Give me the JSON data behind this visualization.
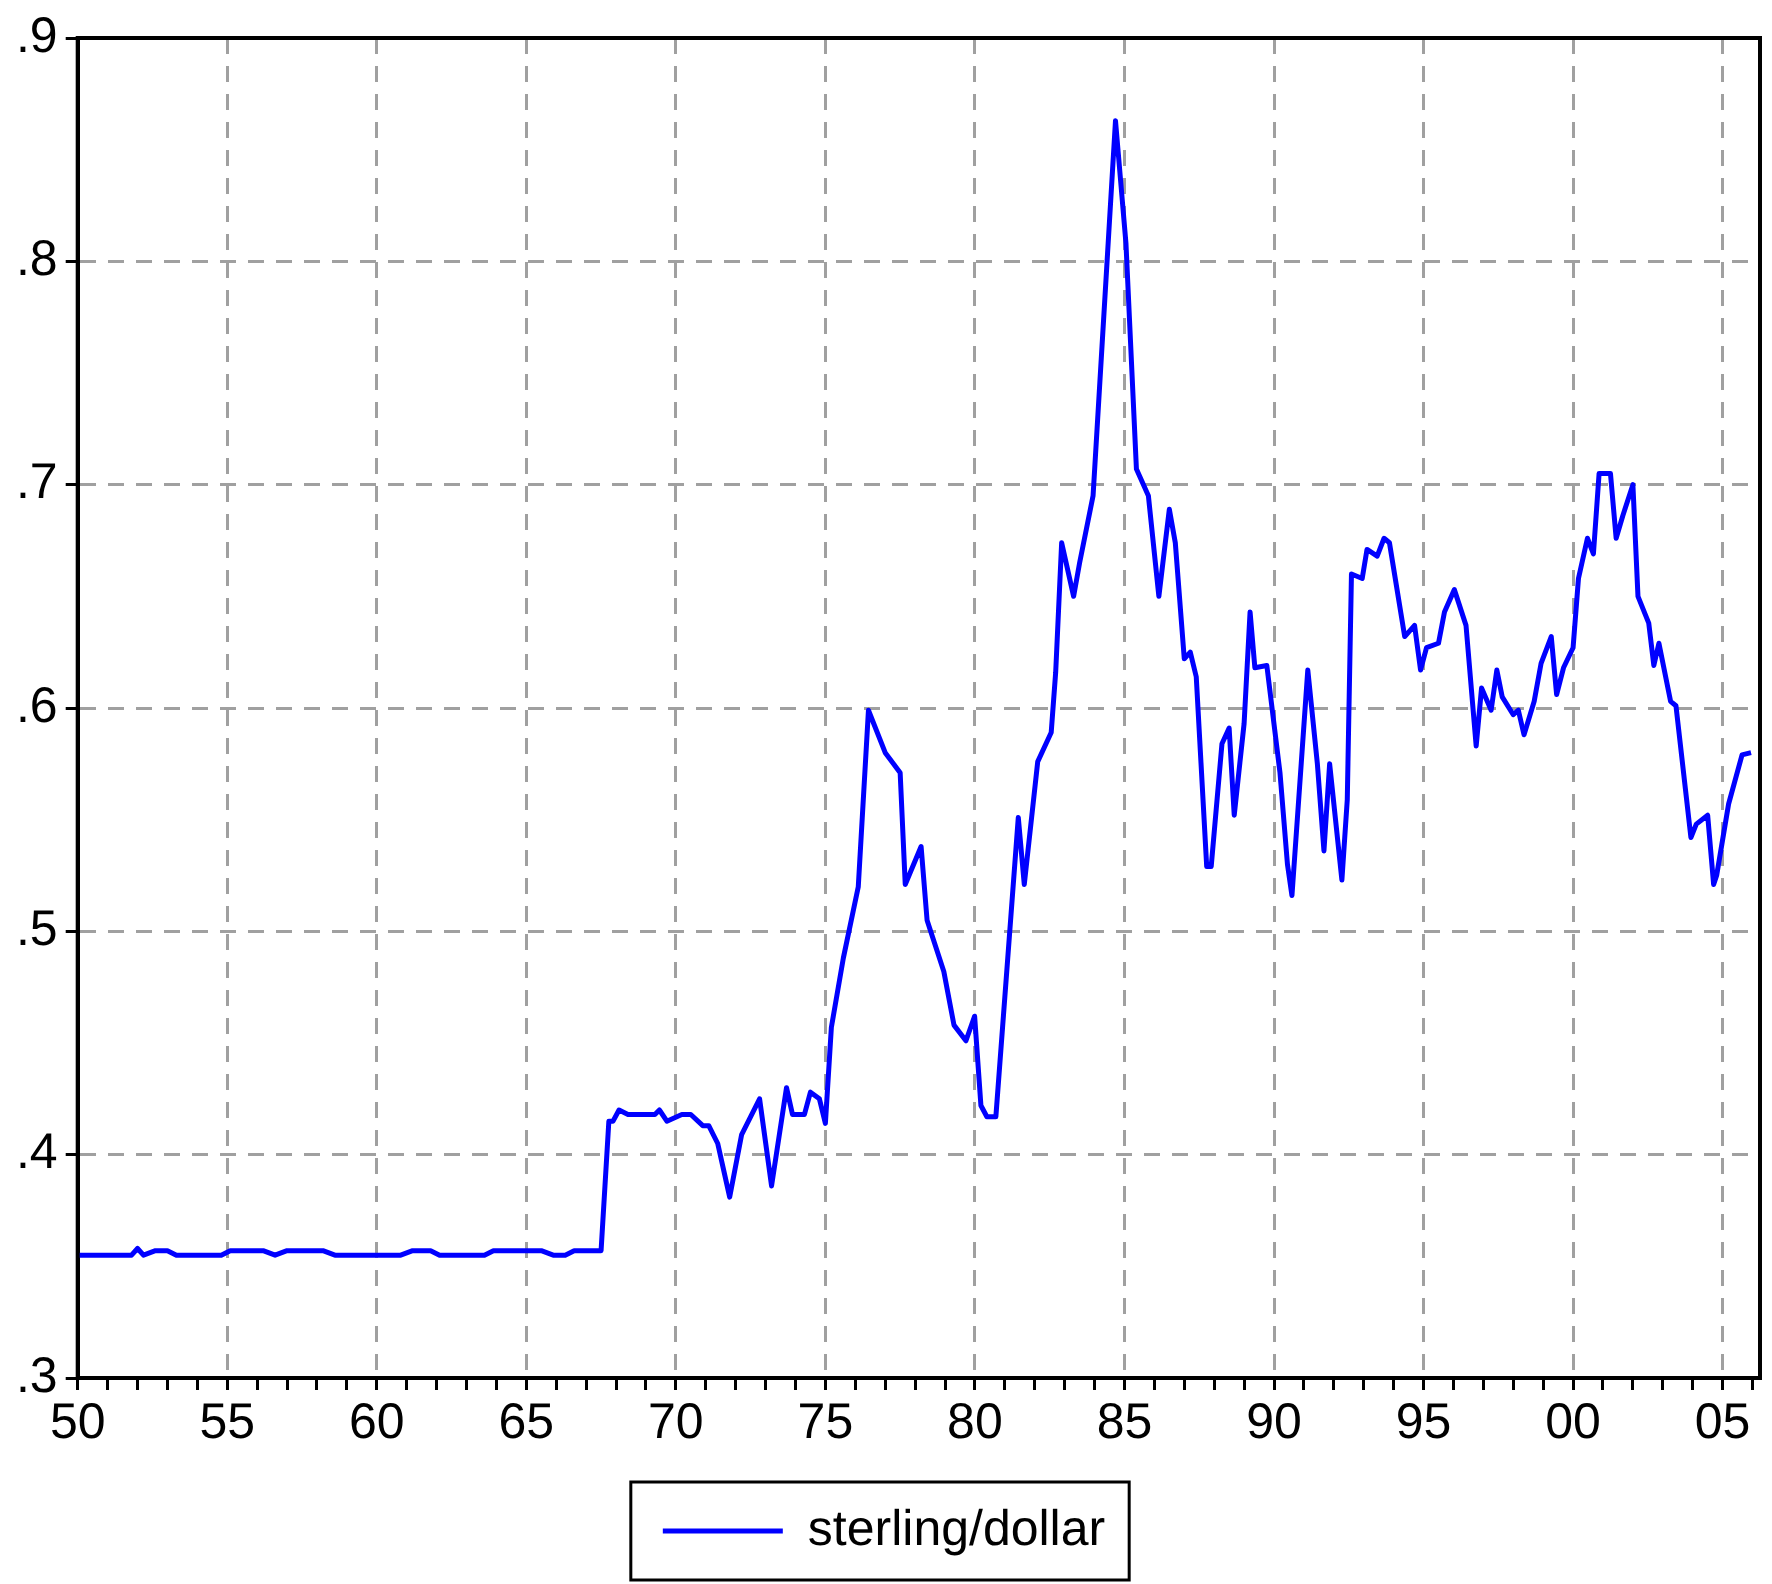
{
  "chart_data": {
    "type": "line",
    "legend": "bottom",
    "grid": true,
    "marker": "none",
    "line_style": "solid",
    "xlim": [
      1950,
      2006.25
    ],
    "xticks": [
      {
        "value": 1950,
        "label": "50"
      },
      {
        "value": 1951,
        "label": null
      },
      {
        "value": 1952,
        "label": null
      },
      {
        "value": 1953,
        "label": null
      },
      {
        "value": 1954,
        "label": null
      },
      {
        "value": 1955,
        "label": "55"
      },
      {
        "value": 1956,
        "label": null
      },
      {
        "value": 1957,
        "label": null
      },
      {
        "value": 1958,
        "label": null
      },
      {
        "value": 1959,
        "label": null
      },
      {
        "value": 1960,
        "label": "60"
      },
      {
        "value": 1961,
        "label": null
      },
      {
        "value": 1962,
        "label": null
      },
      {
        "value": 1963,
        "label": null
      },
      {
        "value": 1964,
        "label": null
      },
      {
        "value": 1965,
        "label": "65"
      },
      {
        "value": 1966,
        "label": null
      },
      {
        "value": 1967,
        "label": null
      },
      {
        "value": 1968,
        "label": null
      },
      {
        "value": 1969,
        "label": null
      },
      {
        "value": 1970,
        "label": "70"
      },
      {
        "value": 1971,
        "label": null
      },
      {
        "value": 1972,
        "label": null
      },
      {
        "value": 1973,
        "label": null
      },
      {
        "value": 1974,
        "label": null
      },
      {
        "value": 1975,
        "label": "75"
      },
      {
        "value": 1976,
        "label": null
      },
      {
        "value": 1977,
        "label": null
      },
      {
        "value": 1978,
        "label": null
      },
      {
        "value": 1979,
        "label": null
      },
      {
        "value": 1980,
        "label": "80"
      },
      {
        "value": 1981,
        "label": null
      },
      {
        "value": 1982,
        "label": null
      },
      {
        "value": 1983,
        "label": null
      },
      {
        "value": 1984,
        "label": null
      },
      {
        "value": 1985,
        "label": "85"
      },
      {
        "value": 1986,
        "label": null
      },
      {
        "value": 1987,
        "label": null
      },
      {
        "value": 1988,
        "label": null
      },
      {
        "value": 1989,
        "label": null
      },
      {
        "value": 1990,
        "label": "90"
      },
      {
        "value": 1991,
        "label": null
      },
      {
        "value": 1992,
        "label": null
      },
      {
        "value": 1993,
        "label": null
      },
      {
        "value": 1994,
        "label": null
      },
      {
        "value": 1995,
        "label": "95"
      },
      {
        "value": 1996,
        "label": null
      },
      {
        "value": 1997,
        "label": null
      },
      {
        "value": 1998,
        "label": null
      },
      {
        "value": 1999,
        "label": null
      },
      {
        "value": 2000,
        "label": "00"
      },
      {
        "value": 2001,
        "label": null
      },
      {
        "value": 2002,
        "label": null
      },
      {
        "value": 2003,
        "label": null
      },
      {
        "value": 2004,
        "label": null
      },
      {
        "value": 2005,
        "label": "05"
      },
      {
        "value": 2006,
        "label": null
      }
    ],
    "ylim": [
      0.3,
      0.9
    ],
    "yticks": [
      {
        "value": 0.3,
        "label": ".3"
      },
      {
        "value": 0.4,
        "label": ".4"
      },
      {
        "value": 0.5,
        "label": ".5"
      },
      {
        "value": 0.6,
        "label": ".6"
      },
      {
        "value": 0.7,
        "label": ".7"
      },
      {
        "value": 0.8,
        "label": ".8"
      },
      {
        "value": 0.9,
        "label": ".9"
      }
    ],
    "series": [
      {
        "name": "sterling/dollar",
        "color": "#0000ff",
        "x": [
          1950,
          1951.8,
          1952.0,
          1952.2,
          1952.6,
          1953.0,
          1953.3,
          1954.8,
          1955.1,
          1956.2,
          1956.6,
          1957.0,
          1958.2,
          1958.6,
          1960.8,
          1961.2,
          1961.8,
          1962.1,
          1963.6,
          1963.9,
          1965.5,
          1965.9,
          1966.3,
          1966.6,
          1967.5,
          1967.76,
          1967.9,
          1968.1,
          1968.4,
          1969.3,
          1969.45,
          1969.7,
          1970.2,
          1970.5,
          1970.9,
          1971.1,
          1971.4,
          1971.8,
          1972.2,
          1972.8,
          1973.2,
          1973.7,
          1973.9,
          1974.3,
          1974.5,
          1974.8,
          1975.0,
          1975.2,
          1975.6,
          1976.1,
          1976.44,
          1977.0,
          1977.5,
          1977.67,
          1978.2,
          1978.4,
          1978.96,
          1979.3,
          1979.7,
          1979.99,
          1980.2,
          1980.4,
          1980.7,
          1981.45,
          1981.65,
          1982.1,
          1982.55,
          1982.7,
          1982.9,
          1983.3,
          1983.5,
          1983.95,
          1984.7,
          1985.05,
          1985.4,
          1985.8,
          1986.15,
          1986.5,
          1986.7,
          1987.0,
          1987.2,
          1987.4,
          1987.75,
          1987.9,
          1988.26,
          1988.5,
          1988.67,
          1989.0,
          1989.2,
          1989.36,
          1989.76,
          1990.2,
          1990.45,
          1990.6,
          1991.13,
          1991.45,
          1991.67,
          1991.86,
          1992.27,
          1992.45,
          1992.59,
          1992.95,
          1993.11,
          1993.45,
          1993.68,
          1993.86,
          1994.37,
          1994.7,
          1994.9,
          1995.1,
          1995.5,
          1995.7,
          1996.03,
          1996.42,
          1996.76,
          1996.94,
          1997.26,
          1997.45,
          1997.63,
          1998.0,
          1998.17,
          1998.36,
          1998.7,
          1998.93,
          1999.27,
          1999.45,
          1999.68,
          2000.0,
          2000.18,
          2000.48,
          2000.68,
          2000.87,
          2001.25,
          2001.44,
          2001.66,
          2002.0,
          2002.17,
          2002.53,
          2002.7,
          2002.87,
          2003.26,
          2003.44,
          2003.94,
          2004.12,
          2004.5,
          2004.7,
          2004.8,
          2005.2,
          2005.65,
          2005.95
        ],
        "values": [
          0.355,
          0.355,
          0.358,
          0.355,
          0.357,
          0.357,
          0.355,
          0.355,
          0.357,
          0.357,
          0.355,
          0.357,
          0.357,
          0.355,
          0.355,
          0.357,
          0.357,
          0.355,
          0.355,
          0.357,
          0.357,
          0.355,
          0.355,
          0.357,
          0.357,
          0.415,
          0.415,
          0.42,
          0.418,
          0.418,
          0.42,
          0.415,
          0.418,
          0.418,
          0.413,
          0.413,
          0.405,
          0.381,
          0.409,
          0.425,
          0.386,
          0.43,
          0.418,
          0.418,
          0.428,
          0.425,
          0.414,
          0.457,
          0.488,
          0.52,
          0.599,
          0.58,
          0.571,
          0.521,
          0.538,
          0.505,
          0.482,
          0.458,
          0.451,
          0.462,
          0.422,
          0.417,
          0.417,
          0.551,
          0.521,
          0.576,
          0.589,
          0.616,
          0.674,
          0.65,
          0.665,
          0.695,
          0.863,
          0.808,
          0.707,
          0.695,
          0.65,
          0.689,
          0.674,
          0.622,
          0.625,
          0.614,
          0.529,
          0.529,
          0.584,
          0.591,
          0.552,
          0.593,
          0.643,
          0.618,
          0.619,
          0.571,
          0.53,
          0.516,
          0.617,
          0.575,
          0.536,
          0.575,
          0.523,
          0.559,
          0.66,
          0.658,
          0.671,
          0.668,
          0.676,
          0.674,
          0.632,
          0.637,
          0.617,
          0.627,
          0.629,
          0.643,
          0.653,
          0.637,
          0.583,
          0.609,
          0.599,
          0.617,
          0.605,
          0.597,
          0.599,
          0.588,
          0.603,
          0.62,
          0.632,
          0.606,
          0.618,
          0.627,
          0.658,
          0.676,
          0.669,
          0.705,
          0.705,
          0.676,
          0.686,
          0.7,
          0.65,
          0.638,
          0.619,
          0.629,
          0.603,
          0.601,
          0.542,
          0.548,
          0.552,
          0.521,
          0.525,
          0.557,
          0.579,
          0.58
        ]
      }
    ]
  }
}
